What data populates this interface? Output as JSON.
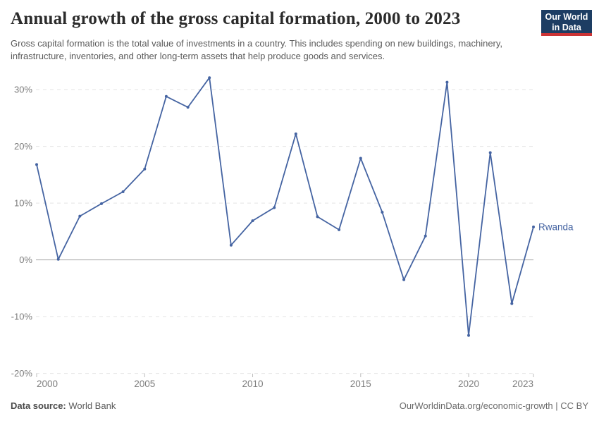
{
  "header": {
    "title": "Annual growth of the gross capital formation, 2000 to 2023",
    "subtitle": "Gross capital formation is the total value of investments in a country. This includes spending on new buildings, machinery, infrastructure, inventories, and other long-term assets that help produce goods and services.",
    "logo": {
      "line1": "Our World",
      "line2": "in Data"
    }
  },
  "footer": {
    "datasource_label": "Data source:",
    "datasource_value": " World Bank",
    "right_text": "OurWorldinData.org/economic-growth | CC BY"
  },
  "colors": {
    "line": "#4564a2",
    "gridline": "#e3e3e3",
    "zero_line": "#a6a6a6",
    "axis_text": "#7d7d7d",
    "tick_mark": "#bdbdbd",
    "logo_navy": "#1d3d63",
    "logo_red": "#cb3335"
  },
  "chart_data": {
    "type": "line",
    "title": "Annual growth of the gross capital formation, 2000 to 2023",
    "entity_label": "Rwanda",
    "unit": "%",
    "x": [
      2000,
      2001,
      2002,
      2003,
      2004,
      2005,
      2006,
      2007,
      2008,
      2009,
      2010,
      2011,
      2012,
      2013,
      2014,
      2015,
      2016,
      2017,
      2018,
      2019,
      2020,
      2021,
      2022,
      2023
    ],
    "series": [
      {
        "name": "Rwanda",
        "values": [
          16.8,
          0.1,
          7.7,
          9.9,
          12.0,
          16.0,
          28.8,
          26.9,
          32.1,
          2.6,
          6.9,
          9.2,
          22.2,
          7.6,
          5.3,
          17.9,
          8.4,
          -3.5,
          4.2,
          31.3,
          -13.3,
          18.9,
          -7.7,
          5.8
        ]
      }
    ],
    "x_ticks": [
      2000,
      2005,
      2010,
      2015,
      2020,
      2023
    ],
    "y_ticks": [
      30,
      20,
      10,
      0,
      -10,
      -20
    ],
    "y_tick_suffix": "%",
    "xlim": [
      2000,
      2023
    ],
    "ylim": [
      -20,
      33
    ],
    "grid": "horizontal-dashed",
    "zero_line": true,
    "legend_position": "end-of-line-label",
    "markers": true
  }
}
